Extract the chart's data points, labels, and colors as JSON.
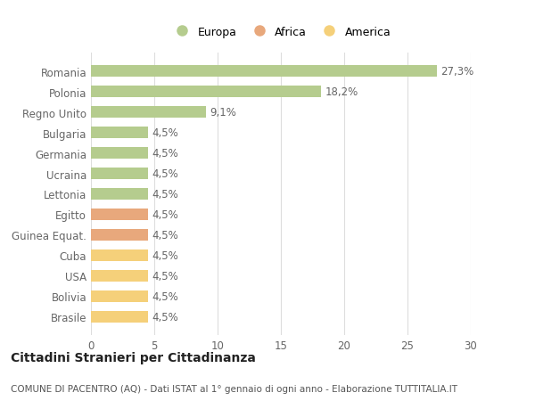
{
  "categories": [
    "Romania",
    "Polonia",
    "Regno Unito",
    "Bulgaria",
    "Germania",
    "Ucraina",
    "Lettonia",
    "Egitto",
    "Guinea Equat.",
    "Cuba",
    "USA",
    "Bolivia",
    "Brasile"
  ],
  "values": [
    27.3,
    18.2,
    9.1,
    4.5,
    4.5,
    4.5,
    4.5,
    4.5,
    4.5,
    4.5,
    4.5,
    4.5,
    4.5
  ],
  "labels": [
    "27,3%",
    "18,2%",
    "9,1%",
    "4,5%",
    "4,5%",
    "4,5%",
    "4,5%",
    "4,5%",
    "4,5%",
    "4,5%",
    "4,5%",
    "4,5%",
    "4,5%"
  ],
  "colors": [
    "#b5cc8e",
    "#b5cc8e",
    "#b5cc8e",
    "#b5cc8e",
    "#b5cc8e",
    "#b5cc8e",
    "#b5cc8e",
    "#e8a87c",
    "#e8a87c",
    "#f5d07a",
    "#f5d07a",
    "#f5d07a",
    "#f5d07a"
  ],
  "legend": [
    {
      "label": "Europa",
      "color": "#b5cc8e"
    },
    {
      "label": "Africa",
      "color": "#e8a87c"
    },
    {
      "label": "America",
      "color": "#f5d07a"
    }
  ],
  "xlim": [
    0,
    30
  ],
  "xticks": [
    0,
    5,
    10,
    15,
    20,
    25,
    30
  ],
  "title": "Cittadini Stranieri per Cittadinanza",
  "subtitle": "COMUNE DI PACENTRO (AQ) - Dati ISTAT al 1° gennaio di ogni anno - Elaborazione TUTTITALIA.IT",
  "background_color": "#ffffff",
  "grid_color": "#dddddd",
  "bar_label_fontsize": 8.5,
  "tick_label_fontsize": 8.5,
  "legend_fontsize": 9,
  "title_fontsize": 10,
  "subtitle_fontsize": 7.5,
  "bar_height": 0.55
}
